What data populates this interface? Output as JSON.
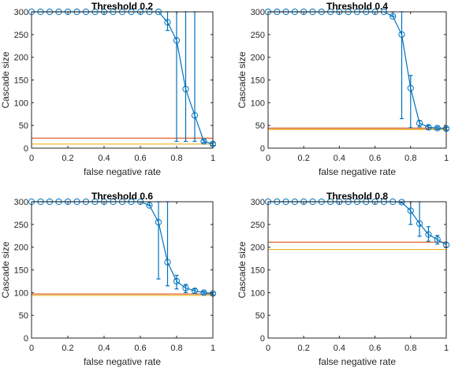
{
  "colors": {
    "series": "#0072BD",
    "ref_upper": "#D95319",
    "ref_lower": "#EDB120",
    "axis": "#262626"
  },
  "chart_data": [
    {
      "type": "line",
      "title": "Threshold 0.2",
      "xlabel": "false negative rate",
      "ylabel": "Cascade size",
      "xlim": [
        0,
        1
      ],
      "ylim": [
        0,
        300
      ],
      "xticks": [
        "0",
        "0.2",
        "0.4",
        "0.6",
        "0.8",
        "1"
      ],
      "yticks": [
        "0",
        "50",
        "100",
        "150",
        "200",
        "250",
        "300"
      ],
      "grid": false,
      "series": [
        {
          "x": [
            0,
            0.05,
            0.1,
            0.15,
            0.2,
            0.25,
            0.3,
            0.35,
            0.4,
            0.45,
            0.5,
            0.55,
            0.6,
            0.65,
            0.7,
            0.75,
            0.8,
            0.85,
            0.9,
            0.95,
            1
          ],
          "y": [
            300,
            300,
            300,
            300,
            300,
            300,
            300,
            300,
            300,
            300,
            300,
            300,
            300,
            300,
            300,
            277,
            237,
            130,
            72,
            15,
            9
          ],
          "err_low": [
            0,
            0,
            0,
            0,
            0,
            0,
            0,
            0,
            0,
            0,
            0,
            0,
            0,
            0,
            0,
            18,
            222,
            115,
            57,
            3,
            3
          ],
          "err_high": [
            0,
            0,
            0,
            0,
            0,
            0,
            0,
            0,
            0,
            0,
            0,
            0,
            0,
            0,
            0,
            23,
            63,
            170,
            228,
            3,
            3
          ]
        }
      ],
      "ref_lines": [
        {
          "y": 22,
          "color": "#D95319"
        },
        {
          "y": 9,
          "color": "#EDB120"
        }
      ]
    },
    {
      "type": "line",
      "title": "Threshold 0.4",
      "xlabel": "false negative rate",
      "ylabel": "Cascade size",
      "xlim": [
        0,
        1
      ],
      "ylim": [
        0,
        300
      ],
      "xticks": [
        "0",
        "0.2",
        "0.4",
        "0.6",
        "0.8",
        "1"
      ],
      "yticks": [
        "0",
        "50",
        "100",
        "150",
        "200",
        "250",
        "300"
      ],
      "grid": false,
      "series": [
        {
          "x": [
            0,
            0.05,
            0.1,
            0.15,
            0.2,
            0.25,
            0.3,
            0.35,
            0.4,
            0.45,
            0.5,
            0.55,
            0.6,
            0.65,
            0.7,
            0.75,
            0.8,
            0.85,
            0.9,
            0.95,
            1
          ],
          "y": [
            300,
            300,
            300,
            300,
            300,
            300,
            300,
            300,
            300,
            300,
            300,
            300,
            300,
            300,
            290,
            250,
            132,
            55,
            46,
            44,
            43
          ],
          "err_low": [
            0,
            0,
            0,
            0,
            0,
            0,
            0,
            0,
            0,
            0,
            0,
            0,
            0,
            0,
            0,
            185,
            87,
            8,
            5,
            3,
            3
          ],
          "err_high": [
            0,
            0,
            0,
            0,
            0,
            0,
            0,
            0,
            0,
            0,
            0,
            0,
            0,
            0,
            10,
            50,
            28,
            6,
            4,
            3,
            3
          ]
        }
      ],
      "ref_lines": [
        {
          "y": 44,
          "color": "#D95319"
        },
        {
          "y": 41,
          "color": "#EDB120"
        }
      ]
    },
    {
      "type": "line",
      "title": "Threshold 0.6",
      "xlabel": "false negative rate",
      "ylabel": "Cascade size",
      "xlim": [
        0,
        1
      ],
      "ylim": [
        0,
        300
      ],
      "xticks": [
        "0",
        "0.2",
        "0.4",
        "0.6",
        "0.8",
        "1"
      ],
      "yticks": [
        "0",
        "50",
        "100",
        "150",
        "200",
        "250",
        "300"
      ],
      "grid": false,
      "series": [
        {
          "x": [
            0,
            0.05,
            0.1,
            0.15,
            0.2,
            0.25,
            0.3,
            0.35,
            0.4,
            0.45,
            0.5,
            0.55,
            0.6,
            0.65,
            0.7,
            0.75,
            0.8,
            0.85,
            0.9,
            0.95,
            1
          ],
          "y": [
            300,
            300,
            300,
            300,
            300,
            300,
            300,
            300,
            300,
            300,
            300,
            300,
            300,
            292,
            255,
            167,
            125,
            110,
            104,
            100,
            98
          ],
          "err_low": [
            0,
            0,
            0,
            0,
            0,
            0,
            0,
            0,
            0,
            0,
            0,
            0,
            0,
            0,
            125,
            52,
            17,
            10,
            5,
            3,
            3
          ],
          "err_high": [
            0,
            0,
            0,
            0,
            0,
            0,
            0,
            0,
            0,
            0,
            0,
            0,
            0,
            8,
            45,
            133,
            13,
            8,
            4,
            3,
            2
          ]
        }
      ],
      "ref_lines": [
        {
          "y": 97,
          "color": "#D95319"
        },
        {
          "y": 94,
          "color": "#EDB120"
        }
      ]
    },
    {
      "type": "line",
      "title": "Threshold 0.8",
      "xlabel": "false negative rate",
      "ylabel": "Cascade size",
      "xlim": [
        0,
        1
      ],
      "ylim": [
        0,
        300
      ],
      "xticks": [
        "0",
        "0.2",
        "0.4",
        "0.6",
        "0.8",
        "1"
      ],
      "yticks": [
        "0",
        "50",
        "100",
        "150",
        "200",
        "250",
        "300"
      ],
      "grid": false,
      "series": [
        {
          "x": [
            0,
            0.05,
            0.1,
            0.15,
            0.2,
            0.25,
            0.3,
            0.35,
            0.4,
            0.45,
            0.5,
            0.55,
            0.6,
            0.65,
            0.7,
            0.75,
            0.8,
            0.85,
            0.9,
            0.95,
            1
          ],
          "y": [
            300,
            300,
            300,
            300,
            300,
            300,
            300,
            300,
            300,
            300,
            300,
            300,
            300,
            300,
            300,
            299,
            280,
            252,
            228,
            217,
            205
          ],
          "err_low": [
            0,
            0,
            0,
            0,
            0,
            0,
            0,
            0,
            0,
            0,
            0,
            0,
            0,
            0,
            0,
            2,
            30,
            28,
            15,
            10,
            5
          ],
          "err_high": [
            0,
            0,
            0,
            0,
            0,
            0,
            0,
            0,
            0,
            0,
            0,
            0,
            0,
            0,
            0,
            1,
            20,
            48,
            17,
            9,
            5
          ]
        }
      ],
      "ref_lines": [
        {
          "y": 211,
          "color": "#D95319"
        },
        {
          "y": 195,
          "color": "#EDB120"
        }
      ]
    }
  ]
}
